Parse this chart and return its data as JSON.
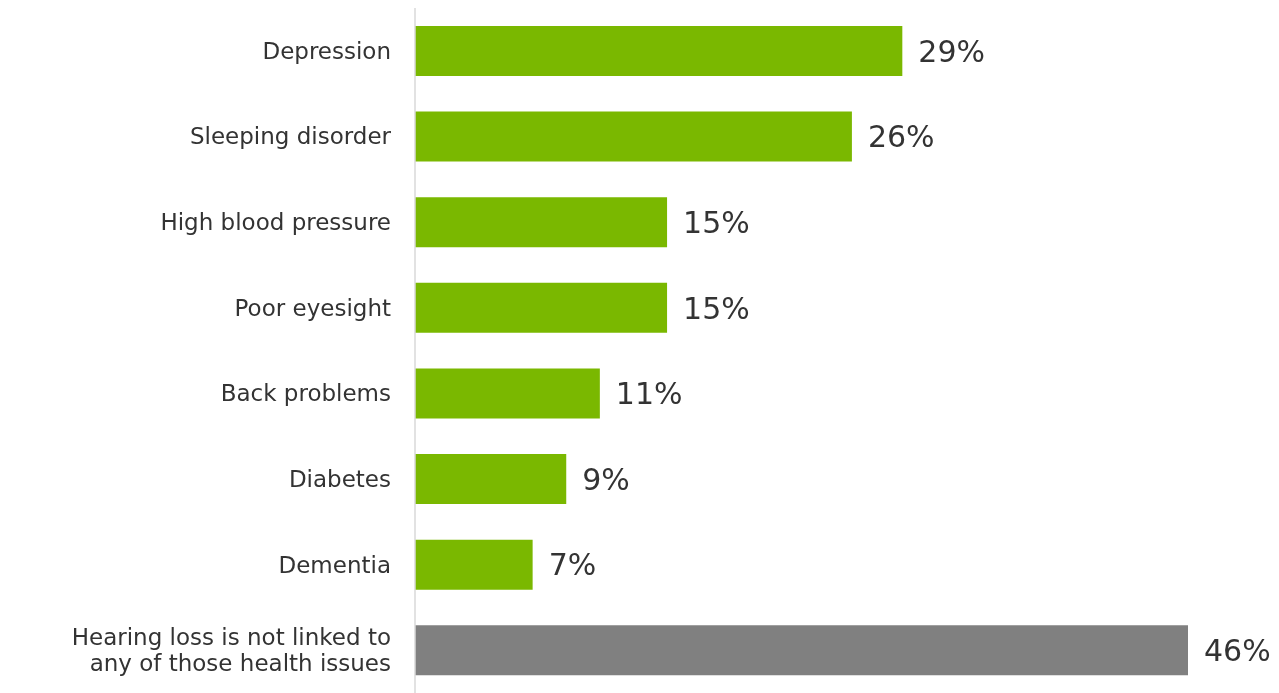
{
  "chart_data": {
    "type": "bar",
    "orientation": "horizontal",
    "value_labels": [
      "29%",
      "26%",
      "15%",
      "15%",
      "11%",
      "9%",
      "7%",
      "46%"
    ],
    "categories": [
      "Depression",
      "Sleeping disorder",
      "High blood pressure",
      "Poor eyesight",
      "Back problems",
      "Diabetes",
      "Dementia",
      "Hearing loss is not linked to any of those health issues"
    ],
    "values": [
      29,
      26,
      15,
      15,
      11,
      9,
      7,
      46
    ],
    "colors": [
      "#7ab800",
      "#7ab800",
      "#7ab800",
      "#7ab800",
      "#7ab800",
      "#7ab800",
      "#7ab800",
      "#808080"
    ]
  }
}
